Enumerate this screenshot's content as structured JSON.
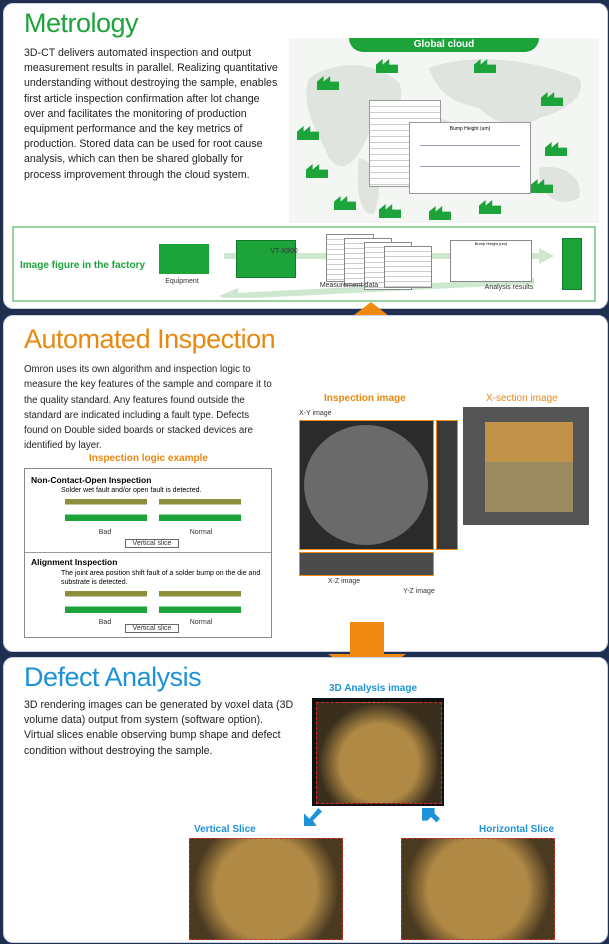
{
  "colors": {
    "green": "#1ca33a",
    "orange": "#e8880f",
    "blue": "#1e92d6",
    "navy": "#1e2f52"
  },
  "metrology": {
    "title": "Metrology",
    "text": "3D-CT delivers automated inspection and output measurement results in parallel. Realizing quantitative understanding without destroying the sample, enables first article inspection confirmation after lot change over and facilitates the monitoring of production equipment performance and the key metrics of production. Stored data can be used for root cause analysis, which can then be shared globally for process improvement through the cloud system.",
    "global_cloud": "Global cloud",
    "factory_label": "Image figure in the factory",
    "equipment": "Equipment",
    "vt": "VT-X900",
    "measurement": "Measurement data",
    "analysis": "Analysis results",
    "chart_title": "Bump Height (um)"
  },
  "automated": {
    "title": "Automated Inspection",
    "text": "Omron uses its own algorithm and inspection logic to measure the key features of the sample and compare it to the quality standard. Any features found outside the standard are indicated including a fault type. Defects found on Double sided boards or stacked devices are identified by layer.",
    "logic_title": "Inspection logic example",
    "nc_title": "Non-Contact-Open Inspection",
    "nc_desc": "Solder wet fault and/or open fault is detected.",
    "bad": "Bad",
    "normal": "Normal",
    "vslice": "Vertical slice",
    "align_title": "Alignment Inspection",
    "align_desc": "The joint area position shift fault of a solder bump on the die and substrate is detected.",
    "inspection_image": "Inspection image",
    "xsection_image": "X-section image",
    "xy": "X-Y image",
    "xz": "X-Z image",
    "yz": "Y-Z image"
  },
  "defect": {
    "title": "Defect Analysis",
    "text": "3D rendering images can be generated by voxel data (3D volume data) output from system (software option). Virtual slices enable observing bump shape and defect condition without destroying the sample.",
    "analysis_image": "3D Analysis image",
    "vertical": "Vertical Slice",
    "horizontal": "Horizontal Slice"
  }
}
